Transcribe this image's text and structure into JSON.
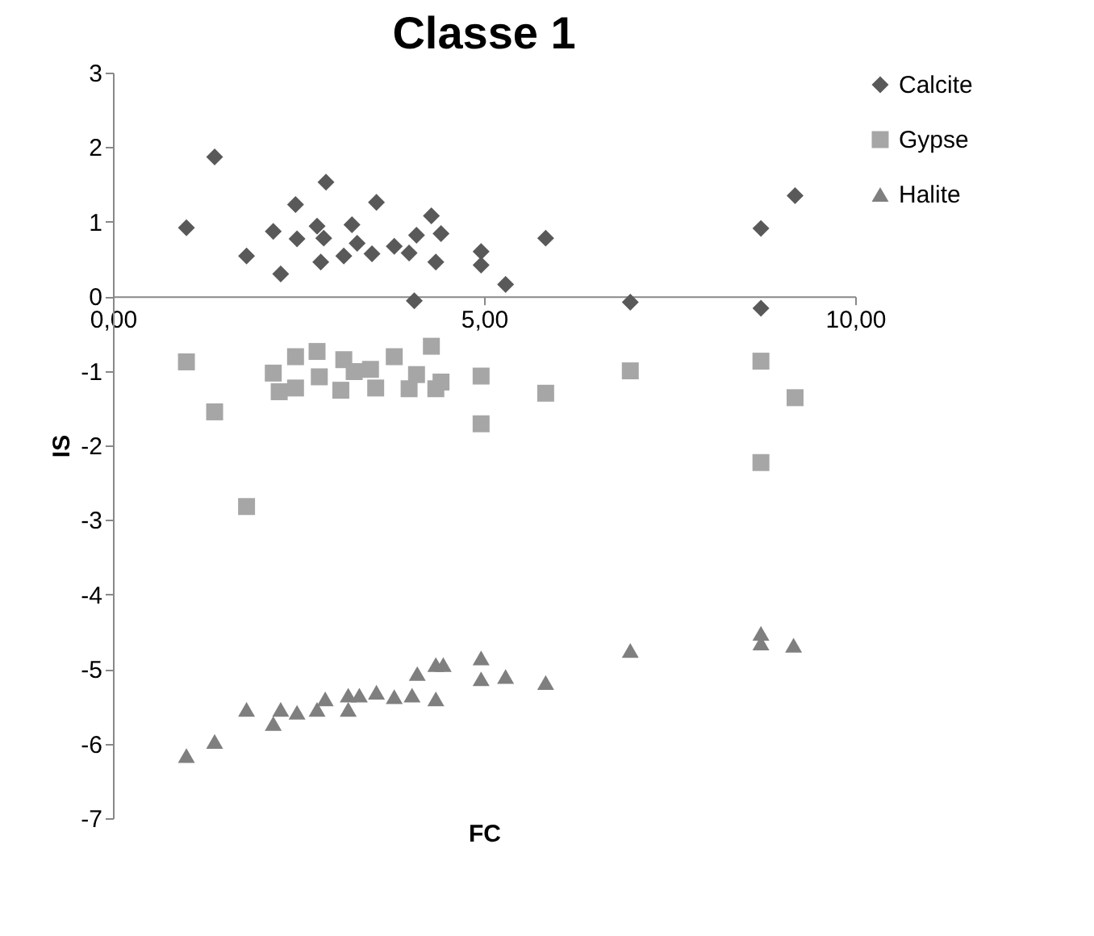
{
  "chart_data": {
    "type": "scatter",
    "title": "Classe 1",
    "xlabel": "FC",
    "ylabel": "IS",
    "xlim": [
      0,
      10
    ],
    "ylim": [
      -7,
      3
    ],
    "xticks": [
      {
        "value": 0,
        "label": "0,00"
      },
      {
        "value": 5,
        "label": "5,00"
      },
      {
        "value": 10,
        "label": "10,00"
      }
    ],
    "yticks": [
      -7,
      -6,
      -5,
      -4,
      -3,
      -2,
      -1,
      0,
      1,
      2,
      3
    ],
    "grid": false,
    "legend": "right",
    "series": [
      {
        "name": "Calcite",
        "color": "#595959",
        "marker": "diamond",
        "x": [
          0.99,
          1.37,
          1.8,
          2.16,
          2.26,
          2.46,
          2.48,
          2.75,
          2.8,
          2.87,
          2.84,
          3.11,
          3.22,
          3.29,
          3.49,
          3.55,
          3.79,
          3.99,
          4.06,
          4.09,
          4.29,
          4.35,
          4.42,
          4.96,
          4.96,
          5.29,
          5.83,
          6.97,
          8.73,
          8.73,
          9.19
        ],
        "values": [
          0.92,
          1.87,
          0.54,
          0.87,
          0.3,
          1.23,
          0.77,
          0.94,
          0.46,
          1.53,
          0.78,
          0.54,
          0.96,
          0.71,
          0.57,
          1.26,
          0.67,
          0.58,
          -0.06,
          0.82,
          1.08,
          0.46,
          0.84,
          0.6,
          0.42,
          0.16,
          0.78,
          -0.08,
          0.91,
          -0.16,
          1.35
        ]
      },
      {
        "name": "Gypse",
        "color": "#a6a6a6",
        "marker": "square",
        "x": [
          0.99,
          1.37,
          1.8,
          2.16,
          2.24,
          2.46,
          2.46,
          2.75,
          2.78,
          3.11,
          3.07,
          3.25,
          3.54,
          3.47,
          3.79,
          3.99,
          4.09,
          4.29,
          4.35,
          4.42,
          4.96,
          4.96,
          5.83,
          6.97,
          8.73,
          8.73,
          9.19
        ],
        "values": [
          -0.88,
          -1.55,
          -2.82,
          -1.03,
          -1.28,
          -0.81,
          -1.23,
          -0.74,
          -1.08,
          -0.85,
          -1.26,
          -1.01,
          -1.23,
          -0.98,
          -0.81,
          -1.24,
          -1.05,
          -0.67,
          -1.24,
          -1.15,
          -1.07,
          -1.71,
          -1.3,
          -1.0,
          -0.87,
          -2.23,
          -1.36
        ]
      },
      {
        "name": "Halite",
        "color": "#7f7f7f",
        "marker": "triangle",
        "x": [
          0.99,
          1.37,
          1.8,
          2.16,
          2.26,
          2.48,
          2.75,
          2.86,
          3.17,
          3.17,
          3.32,
          3.55,
          3.79,
          4.03,
          4.1,
          4.35,
          4.35,
          4.45,
          4.96,
          4.96,
          5.29,
          5.83,
          6.97,
          8.73,
          8.73,
          9.17
        ],
        "values": [
          -6.16,
          -5.97,
          -5.54,
          -5.73,
          -5.54,
          -5.58,
          -5.54,
          -5.4,
          -5.35,
          -5.54,
          -5.35,
          -5.31,
          -5.37,
          -5.35,
          -5.06,
          -5.4,
          -4.94,
          -4.94,
          -4.85,
          -5.13,
          -5.1,
          -5.18,
          -4.75,
          -4.52,
          -4.65,
          -4.68
        ]
      }
    ]
  }
}
